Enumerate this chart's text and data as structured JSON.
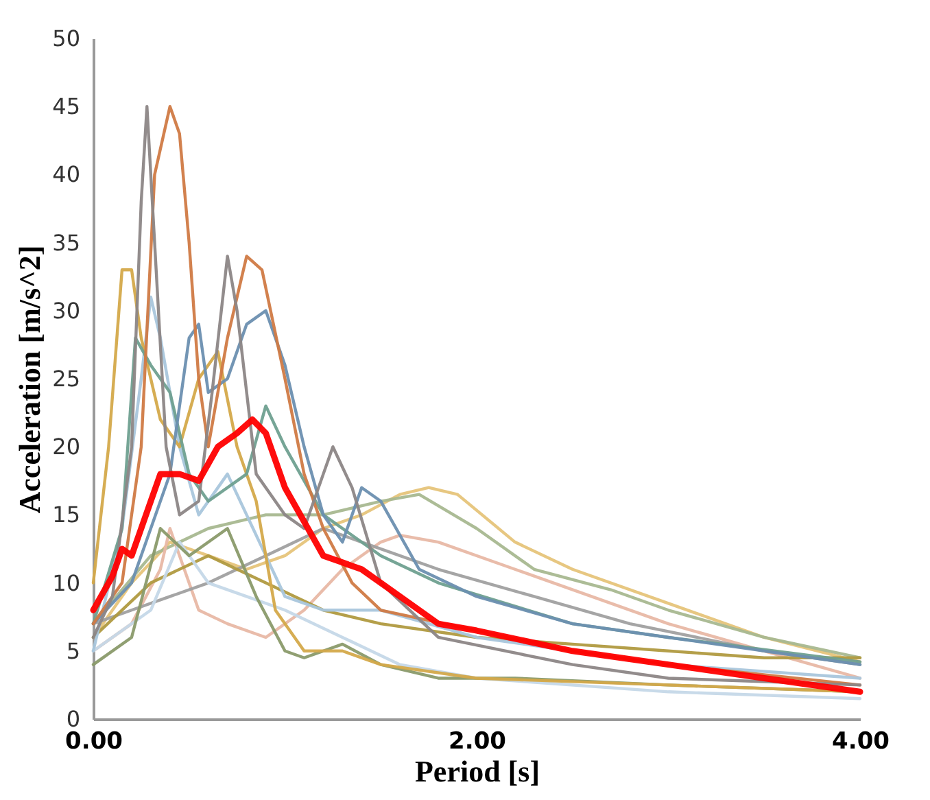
{
  "chart_data": {
    "type": "line",
    "xlabel": "Period [s]",
    "ylabel": "Acceleration [m/s^2]",
    "xlim": [
      0,
      4
    ],
    "ylim": [
      0,
      50
    ],
    "xticks": [
      {
        "value": 0,
        "label": "0.00"
      },
      {
        "value": 2,
        "label": "2.00"
      },
      {
        "value": 4,
        "label": "4.00"
      }
    ],
    "yticks": [
      0,
      5,
      10,
      15,
      20,
      25,
      30,
      35,
      40,
      45,
      50
    ],
    "grid": false,
    "legend": false,
    "series": [
      {
        "color": "#e6c47a",
        "x": [
          0,
          0.2,
          0.4,
          0.6,
          0.8,
          1.0,
          1.2,
          1.4,
          1.6,
          1.75,
          1.9,
          2.2,
          2.5,
          3.0,
          3.5,
          4.0
        ],
        "values": [
          6,
          10,
          13,
          12,
          11,
          12,
          14,
          15,
          16.5,
          17,
          16.5,
          13,
          11,
          8.5,
          6,
          4.2
        ]
      },
      {
        "color": "#a8b890",
        "x": [
          0,
          0.3,
          0.6,
          0.9,
          1.2,
          1.5,
          1.7,
          2.0,
          2.3,
          2.7,
          3.0,
          3.5,
          4.0
        ],
        "values": [
          7,
          12,
          14,
          15,
          15,
          16,
          16.5,
          14,
          11,
          9.5,
          8,
          6,
          4.5
        ]
      },
      {
        "color": "#e8b8a5",
        "x": [
          0,
          0.2,
          0.35,
          0.4,
          0.45,
          0.55,
          0.7,
          0.9,
          1.1,
          1.3,
          1.5,
          1.6,
          1.8,
          2.2,
          2.6,
          3.0,
          3.5,
          4.0
        ],
        "values": [
          5,
          7,
          11,
          14,
          12,
          8,
          7,
          6,
          8,
          11,
          13,
          13.5,
          13,
          11,
          9,
          7,
          5,
          3
        ]
      },
      {
        "color": "#a0a0a0",
        "x": [
          0,
          0.2,
          0.4,
          0.6,
          0.9,
          1.2,
          1.4,
          1.8,
          2.3,
          2.8,
          3.5,
          4.0
        ],
        "values": [
          7,
          8,
          9,
          10,
          12,
          14,
          13,
          11,
          9,
          7,
          5,
          4
        ]
      },
      {
        "color": "#b09a40",
        "x": [
          0,
          0.3,
          0.6,
          0.9,
          1.2,
          1.5,
          2.0,
          2.5,
          3.0,
          3.5,
          4.0
        ],
        "values": [
          6,
          10,
          12,
          10,
          8,
          7,
          6,
          5.5,
          5,
          4.5,
          4.5
        ]
      },
      {
        "color": "#c5d8e8",
        "x": [
          0,
          0.3,
          0.45,
          0.6,
          0.8,
          1.0,
          1.3,
          1.6,
          2.0,
          3.0,
          4.0
        ],
        "values": [
          5,
          8,
          13,
          10,
          9,
          8,
          6,
          4,
          3,
          2,
          1.5
        ]
      },
      {
        "color": "#8a9a6a",
        "x": [
          0,
          0.2,
          0.35,
          0.5,
          0.7,
          0.85,
          1.0,
          1.1,
          1.3,
          1.5,
          1.8,
          2.2,
          3.0,
          4.0
        ],
        "values": [
          4,
          6,
          14,
          12,
          14,
          9,
          5,
          4.5,
          5.5,
          4,
          3,
          3,
          2.5,
          2
        ]
      },
      {
        "color": "#a9c6dc",
        "x": [
          0,
          0.15,
          0.25,
          0.3,
          0.35,
          0.45,
          0.55,
          0.7,
          0.8,
          0.9,
          1.0,
          1.2,
          1.5,
          2.0,
          3.0,
          4.0
        ],
        "values": [
          5,
          14,
          25,
          31,
          28,
          20,
          15,
          18,
          15,
          12,
          9,
          8,
          8,
          6,
          4,
          3
        ]
      },
      {
        "color": "#d4a94a",
        "x": [
          0,
          0.08,
          0.15,
          0.2,
          0.25,
          0.35,
          0.45,
          0.55,
          0.65,
          0.75,
          0.85,
          0.95,
          1.1,
          1.3,
          1.5,
          2.0,
          3.0,
          4.0
        ],
        "values": [
          10,
          20,
          33,
          33,
          28,
          22,
          20,
          25,
          27,
          20,
          16,
          8,
          5,
          5,
          4,
          3,
          2.5,
          2
        ]
      },
      {
        "color": "#6fa090",
        "x": [
          0,
          0.15,
          0.22,
          0.3,
          0.4,
          0.5,
          0.6,
          0.8,
          0.9,
          1.0,
          1.2,
          1.5,
          1.8,
          2.5,
          3.0,
          4.0
        ],
        "values": [
          7,
          14,
          28,
          26,
          24,
          18,
          16,
          18,
          23,
          20,
          15,
          12,
          10,
          7,
          6,
          4.2
        ]
      },
      {
        "color": "#6b8fb0",
        "x": [
          0,
          0.2,
          0.4,
          0.5,
          0.55,
          0.6,
          0.7,
          0.8,
          0.9,
          1.0,
          1.1,
          1.2,
          1.3,
          1.4,
          1.5,
          1.7,
          2.0,
          2.5,
          3.0,
          4.0
        ],
        "values": [
          7,
          10,
          18,
          28,
          29,
          24,
          25,
          29,
          30,
          26,
          20,
          15,
          13,
          17,
          16,
          11,
          9,
          7,
          6,
          4
        ]
      },
      {
        "color": "#d07a45",
        "x": [
          0,
          0.15,
          0.25,
          0.32,
          0.4,
          0.45,
          0.5,
          0.55,
          0.6,
          0.7,
          0.8,
          0.88,
          1.0,
          1.1,
          1.2,
          1.35,
          1.5,
          2.0,
          2.5,
          3.0,
          4.0
        ],
        "values": [
          7,
          10,
          20,
          40,
          45,
          43,
          35,
          25,
          20,
          28,
          34,
          33,
          25,
          18,
          14,
          10,
          8,
          6.5,
          5,
          4,
          2.5
        ]
      },
      {
        "color": "#8c8686",
        "x": [
          0,
          0.1,
          0.2,
          0.25,
          0.28,
          0.32,
          0.38,
          0.45,
          0.55,
          0.62,
          0.7,
          0.75,
          0.85,
          1.0,
          1.1,
          1.2,
          1.25,
          1.35,
          1.5,
          1.8,
          2.5,
          3.0,
          4.0
        ],
        "values": [
          6,
          9,
          20,
          38,
          45,
          35,
          20,
          15,
          16,
          24,
          34,
          30,
          18,
          15,
          14,
          18,
          20,
          17,
          10,
          6,
          4,
          3,
          2.5
        ]
      },
      {
        "color": "#ff0000",
        "x": [
          0,
          0.1,
          0.15,
          0.2,
          0.3,
          0.35,
          0.45,
          0.55,
          0.65,
          0.75,
          0.83,
          0.9,
          1.0,
          1.1,
          1.2,
          1.3,
          1.4,
          1.6,
          1.8,
          2.0,
          2.5,
          3.0,
          3.5,
          4.0
        ],
        "values": [
          8,
          10.5,
          12.5,
          12,
          16,
          18,
          18,
          17.5,
          20,
          21,
          22,
          21,
          17,
          14.5,
          12,
          11.5,
          11,
          9,
          7,
          6.5,
          5,
          4,
          3,
          2
        ]
      }
    ]
  }
}
